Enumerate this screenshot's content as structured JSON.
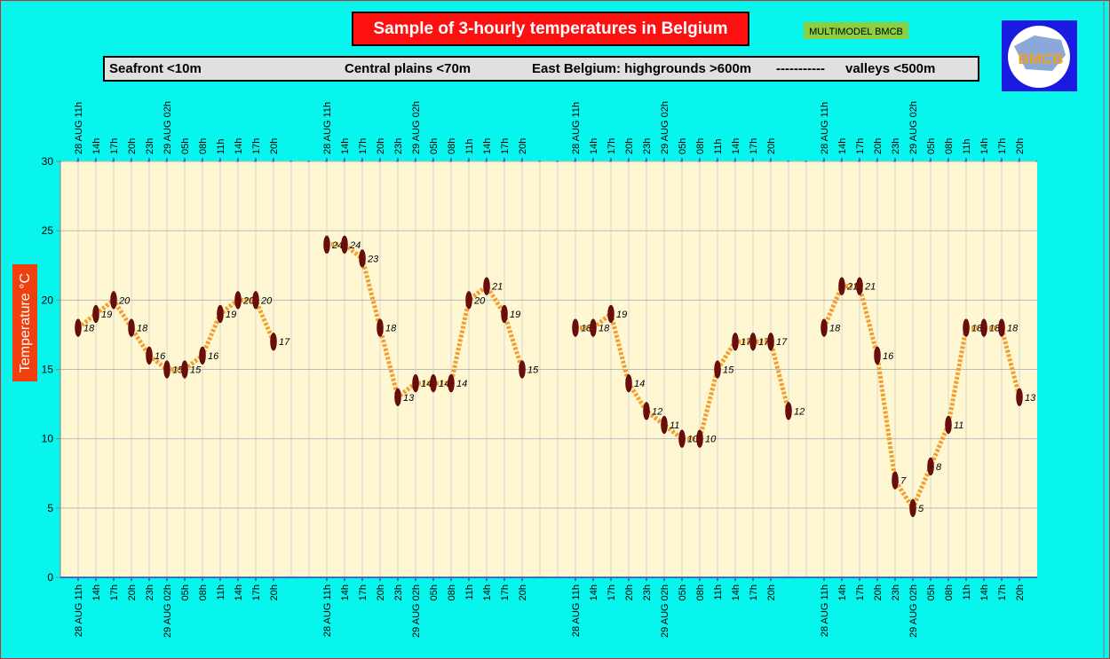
{
  "chart_data": {
    "type": "line",
    "title": "Sample of 3-hourly temperatures in Belgium",
    "badge": "MULTIMODEL BMCB",
    "logo": "BMCB",
    "header_labels": [
      "Seafront <10m",
      "Central plains <70m",
      "East Belgium: highgrounds >600m",
      "-----------",
      "valleys <500m"
    ],
    "ylabel": "Temperature °C",
    "categories": [
      "28 AUG 11h",
      "14h",
      "17h",
      "20h",
      "23h",
      "29 AUG 02h",
      "05h",
      "08h",
      "11h",
      "14h",
      "17h",
      "20h",
      null,
      null,
      "28 AUG 11h",
      "14h",
      "17h",
      "20h",
      "23h",
      "29 AUG 02h",
      "05h",
      "08h",
      "11h",
      "14h",
      "17h",
      "20h",
      null,
      null,
      "28 AUG 11h",
      "14h",
      "17h",
      "20h",
      "23h",
      "29 AUG 02h",
      "05h",
      "08h",
      "11h",
      "14h",
      "17h",
      "20h",
      null,
      null,
      "28 AUG 11h",
      "14h",
      "17h",
      "20h",
      "23h",
      "29 AUG 02h",
      "05h",
      "08h",
      "11h",
      "14h",
      "17h",
      "20h"
    ],
    "values": [
      18,
      19,
      20,
      18,
      16,
      15,
      15,
      16,
      19,
      20,
      20,
      17,
      null,
      null,
      24,
      24,
      23,
      18,
      13,
      14,
      14,
      14,
      20,
      21,
      19,
      15,
      null,
      null,
      18,
      18,
      19,
      14,
      12,
      11,
      10,
      10,
      15,
      17,
      17,
      17,
      12,
      null,
      18,
      21,
      21,
      16,
      7,
      5,
      8,
      11,
      18,
      18,
      18,
      13
    ],
    "color": "#f0a030",
    "marker_color": "#6e0b0b",
    "ylim": [
      0,
      30
    ],
    "yticks": [
      0,
      5,
      10,
      15,
      20,
      25,
      30
    ],
    "grid": true
  }
}
